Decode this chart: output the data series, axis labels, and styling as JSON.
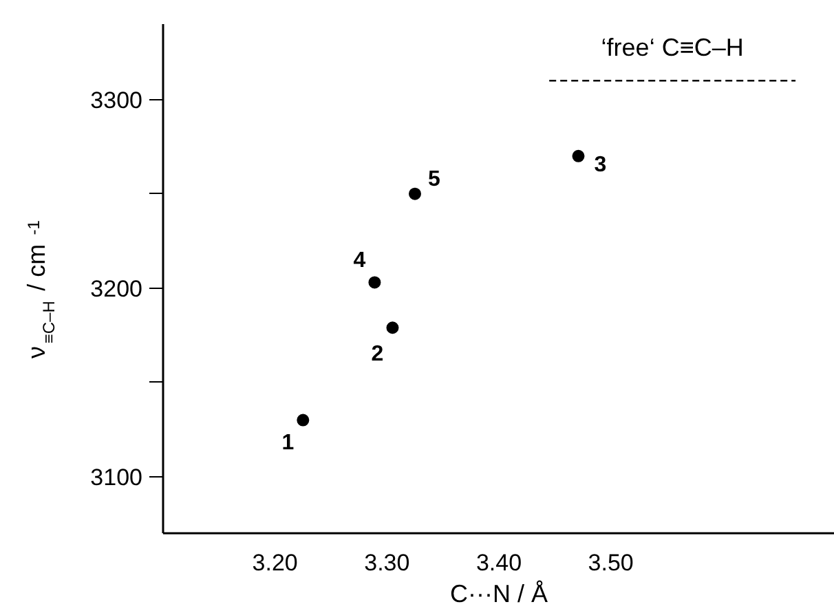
{
  "chart_data": {
    "type": "scatter",
    "xlabel": "C···N / Å",
    "ylabel": "ν$_{≡C–H}$ / cm$^{-1}$",
    "x": [
      3.225,
      3.305,
      3.471,
      3.289,
      3.325
    ],
    "series": [
      {
        "color": "#000000",
        "marker": "circle",
        "values": [
          3130,
          3179,
          3270,
          3203,
          3250
        ]
      },
      {
        "type": "line",
        "color": "#000000",
        "line_style": "dashed",
        "marker": "none",
        "x": [
          3.445,
          3.665
        ],
        "values": [
          3310,
          3310
        ]
      }
    ],
    "annotations": [
      {
        "text": "1",
        "x": 3.225,
        "y": 3130
      },
      {
        "text": "2",
        "x": 3.305,
        "y": 3179
      },
      {
        "text": "3",
        "x": 3.471,
        "y": 3270
      },
      {
        "text": "4",
        "x": 3.289,
        "y": 3203
      },
      {
        "text": "5",
        "x": 3.325,
        "y": 3250
      },
      {
        "text": "‘free‘ C≡C–H",
        "x": 3.555,
        "y": 3310
      }
    ],
    "xlim": [
      3.1,
      3.7
    ],
    "ylim": [
      3070,
      3340
    ],
    "xticks": [
      {
        "value": 3.2,
        "label": "3.20"
      },
      {
        "value": 3.3,
        "label": "3.30"
      },
      {
        "value": 3.4,
        "label": "3.40"
      },
      {
        "value": 3.5,
        "label": "3.50"
      }
    ],
    "yticks": [
      3100,
      {
        "value": 3150,
        "label": null
      },
      3200,
      {
        "value": 3250,
        "label": null
      },
      3300
    ],
    "grid": false
  }
}
